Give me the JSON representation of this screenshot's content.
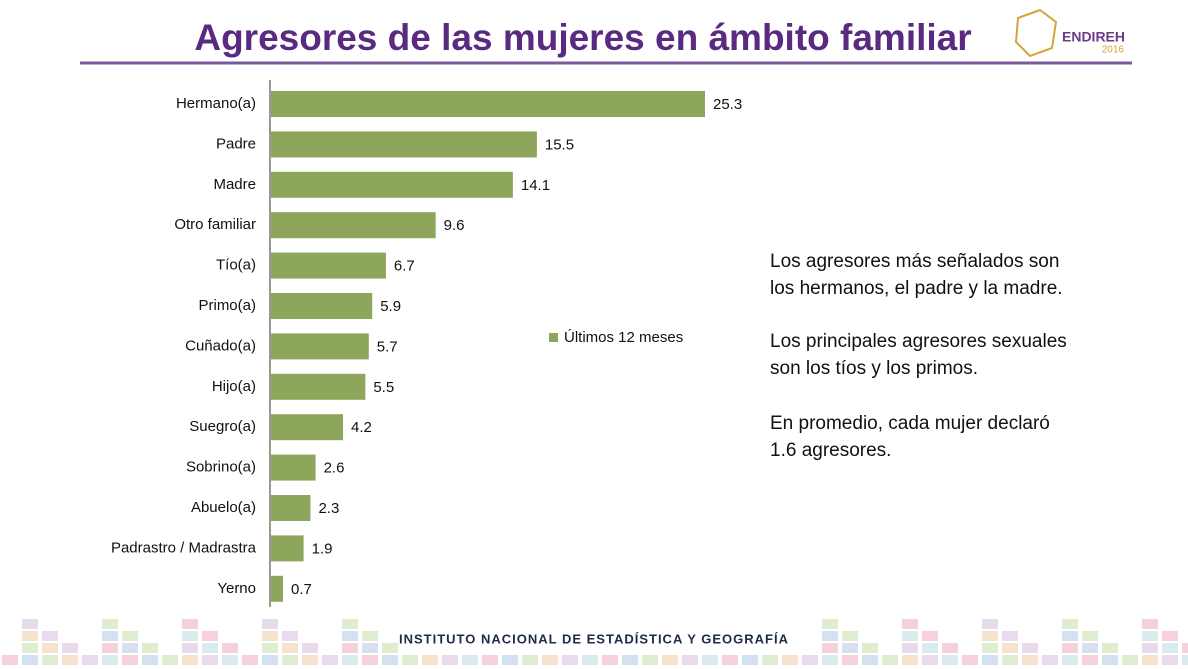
{
  "chart_data": {
    "type": "bar",
    "orientation": "horizontal",
    "title": "Agresores de las mujeres en ámbito familiar",
    "categories": [
      "Hermano(a)",
      "Padre",
      "Madre",
      "Otro familiar",
      "Tío(a)",
      "Primo(a)",
      "Cuñado(a)",
      "Hijo(a)",
      "Suegro(a)",
      "Sobrino(a)",
      "Abuelo(a)",
      "Padrastro / Madrastra",
      "Yerno"
    ],
    "series": [
      {
        "name": "Últimos 12 meses",
        "color": "#8ea55c",
        "values": [
          25.3,
          15.5,
          14.1,
          9.6,
          6.7,
          5.9,
          5.7,
          5.5,
          4.2,
          2.6,
          2.3,
          1.9,
          0.7
        ]
      }
    ],
    "annotations": [
      [
        "Los agresores más señalados son",
        "los hermanos, el padre y la madre."
      ],
      [
        "Los principales agresores sexuales",
        "son los tíos y  los primos."
      ],
      [
        "En promedio, cada mujer declaró",
        "1.6 agresores."
      ]
    ]
  },
  "logo": {
    "name": "ENDIREH",
    "year": "2016"
  },
  "footer": "INSTITUTO NACIONAL  DE ESTADÍSTICA Y GEOGRAFÍA"
}
